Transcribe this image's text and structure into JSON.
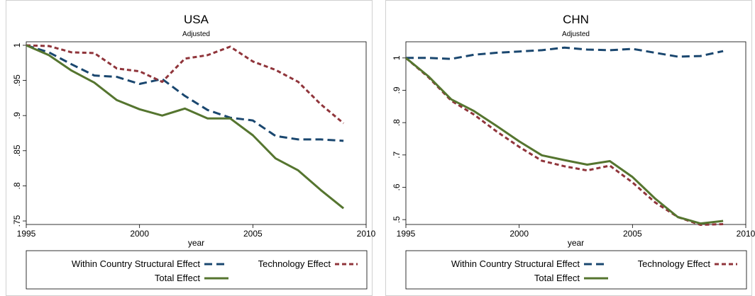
{
  "chart_data": [
    {
      "type": "line",
      "title": "USA",
      "subtitle": "Adjusted",
      "xlabel": "year",
      "ylabel": "",
      "xlim": [
        1995,
        2010
      ],
      "ylim": [
        0.745,
        1.005
      ],
      "x_ticks": [
        1995,
        2000,
        2005,
        2010
      ],
      "x_tick_labels": [
        "1995",
        "2000",
        "2005",
        "2010"
      ],
      "y_ticks": [
        0.75,
        0.8,
        0.85,
        0.9,
        0.95,
        1.0
      ],
      "y_tick_labels": [
        ".75",
        ".8",
        ".85",
        ".9",
        ".95",
        "1"
      ],
      "grid": false,
      "x": [
        1995,
        1996,
        1997,
        1998,
        1999,
        2000,
        2001,
        2002,
        2003,
        2004,
        2005,
        2006,
        2007,
        2008,
        2009
      ],
      "series": [
        {
          "name": "Within Country Structural Effect",
          "color": "#1a476f",
          "dash": "long-dash",
          "values": [
            1.0,
            0.99,
            0.973,
            0.957,
            0.955,
            0.945,
            0.952,
            0.928,
            0.908,
            0.897,
            0.893,
            0.871,
            0.866,
            0.866,
            0.864
          ]
        },
        {
          "name": "Technology Effect",
          "color": "#90353b",
          "dash": "short-dash",
          "values": [
            1.0,
            0.999,
            0.99,
            0.989,
            0.967,
            0.963,
            0.948,
            0.981,
            0.986,
            0.998,
            0.977,
            0.965,
            0.948,
            0.916,
            0.889
          ]
        },
        {
          "name": "Total Effect",
          "color": "#55752f",
          "dash": "solid",
          "values": [
            1.0,
            0.986,
            0.964,
            0.947,
            0.922,
            0.909,
            0.9,
            0.91,
            0.896,
            0.896,
            0.872,
            0.839,
            0.822,
            0.794,
            0.768
          ]
        }
      ],
      "legend": {
        "position": "bottom",
        "entries": [
          "Within Country Structural Effect",
          "Technology Effect",
          "Total Effect"
        ]
      }
    },
    {
      "type": "line",
      "title": "CHN",
      "subtitle": "Adjusted",
      "xlabel": "year",
      "ylabel": "",
      "xlim": [
        1995,
        2010
      ],
      "ylim": [
        0.485,
        1.05
      ],
      "x_ticks": [
        1995,
        2000,
        2005,
        2010
      ],
      "x_tick_labels": [
        "1995",
        "2000",
        "2005",
        "2010"
      ],
      "y_ticks": [
        0.5,
        0.6,
        0.7,
        0.8,
        0.9,
        1.0
      ],
      "y_tick_labels": [
        ".5",
        ".6",
        ".7",
        ".8",
        ".9",
        "1"
      ],
      "grid": false,
      "x": [
        1995,
        1996,
        1997,
        1998,
        1999,
        2000,
        2001,
        2002,
        2003,
        2004,
        2005,
        2006,
        2007,
        2008,
        2009
      ],
      "series": [
        {
          "name": "Within Country Structural Effect",
          "color": "#1a476f",
          "dash": "long-dash",
          "values": [
            1.0,
            1.0,
            0.997,
            1.01,
            1.016,
            1.02,
            1.024,
            1.032,
            1.026,
            1.024,
            1.028,
            1.016,
            1.004,
            1.006,
            1.021
          ]
        },
        {
          "name": "Technology Effect",
          "color": "#90353b",
          "dash": "short-dash",
          "values": [
            1.0,
            0.94,
            0.868,
            0.825,
            0.773,
            0.725,
            0.682,
            0.665,
            0.652,
            0.667,
            0.615,
            0.553,
            0.508,
            0.484,
            0.486
          ]
        },
        {
          "name": "Total Effect",
          "color": "#55752f",
          "dash": "solid",
          "values": [
            1.0,
            0.943,
            0.872,
            0.836,
            0.79,
            0.742,
            0.699,
            0.684,
            0.67,
            0.681,
            0.632,
            0.565,
            0.508,
            0.488,
            0.496
          ]
        }
      ],
      "legend": {
        "position": "bottom",
        "entries": [
          "Within Country Structural Effect",
          "Technology Effect",
          "Total Effect"
        ]
      }
    }
  ]
}
